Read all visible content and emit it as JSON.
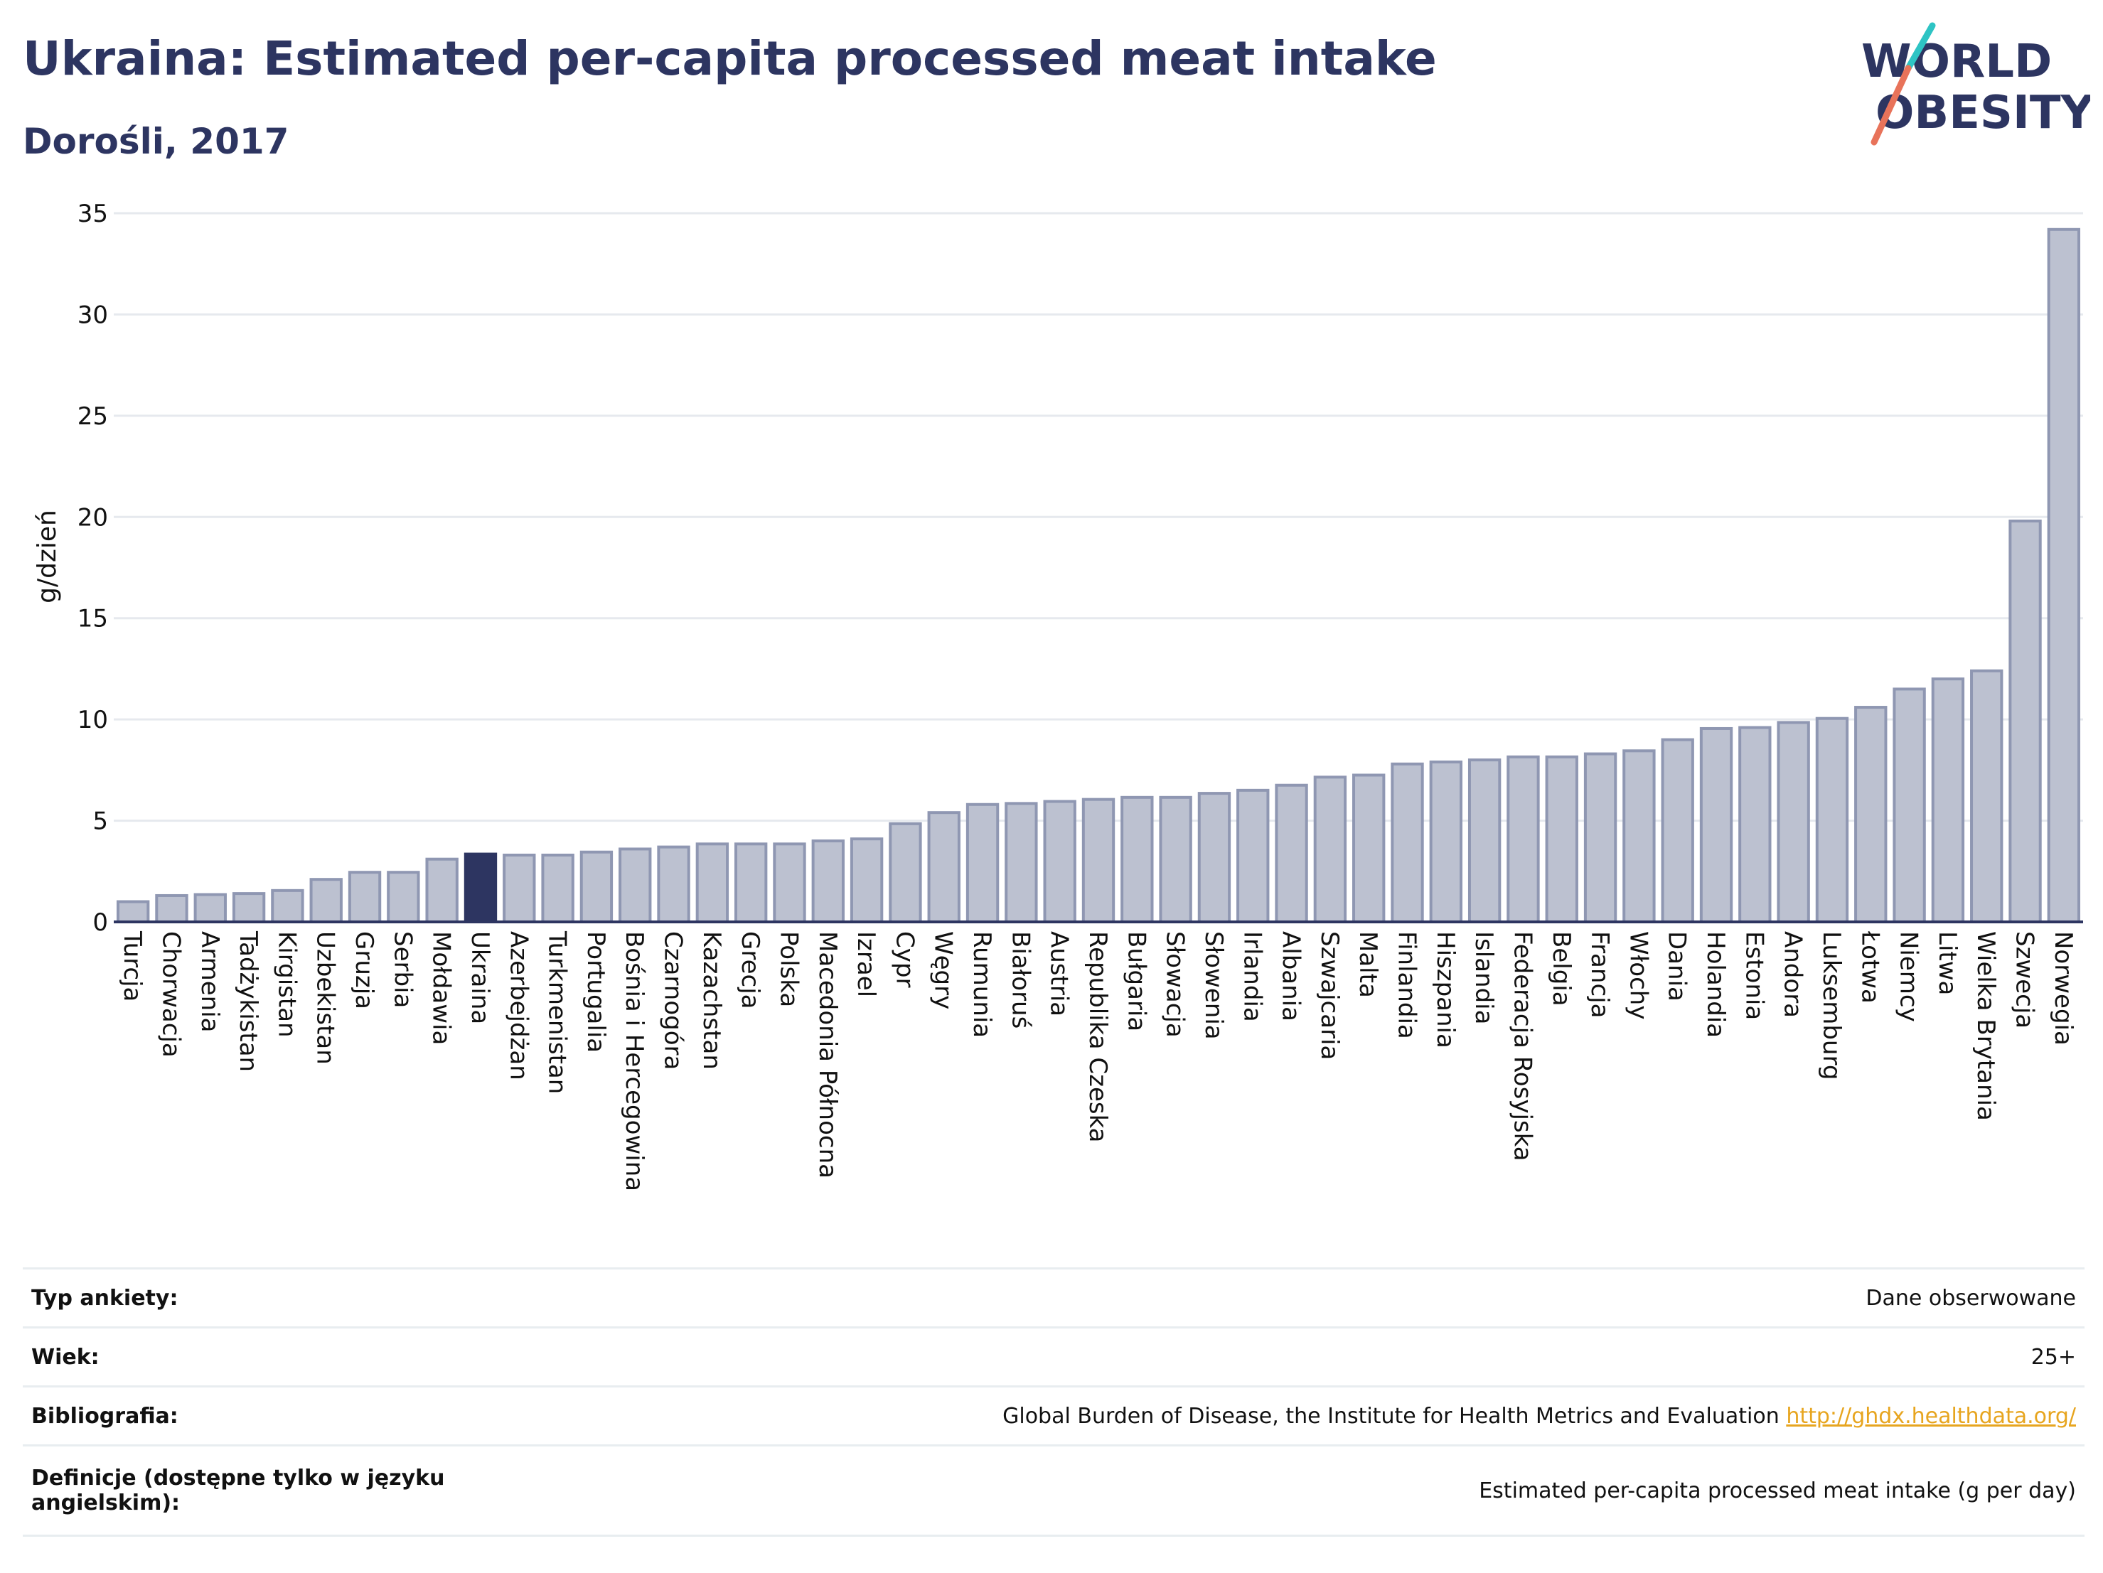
{
  "header": {
    "title": "Ukraina: Estimated per-capita processed meat intake",
    "subtitle": "Dorośli, 2017"
  },
  "logo": {
    "line1": "WORLD",
    "line2": "OBESITY",
    "accent_colors": [
      "#2ec4c4",
      "#e8735a"
    ]
  },
  "colors": {
    "highlight": "#2d3561",
    "bar": "#bcc1d0",
    "bar_edge": "#8f97b2",
    "axis": "#2d3561",
    "grid": "#e6e9ee",
    "link": "#e7a51f"
  },
  "chart_data": {
    "type": "bar",
    "title": "Ukraina: Estimated per-capita processed meat intake",
    "subtitle": "Dorośli, 2017",
    "xlabel": "",
    "ylabel": "g/dzień",
    "ylim": [
      0,
      35
    ],
    "yticks": [
      0,
      5,
      10,
      15,
      20,
      25,
      30,
      35
    ],
    "grid": true,
    "highlight": "Ukraina",
    "categories": [
      "Turcja",
      "Chorwacja",
      "Armenia",
      "Tadżykistan",
      "Kirgistan",
      "Uzbekistan",
      "Gruzja",
      "Serbia",
      "Mołdawia",
      "Ukraina",
      "Azerbejdżan",
      "Turkmenistan",
      "Portugalia",
      "Bośnia i Hercegowina",
      "Czarnogóra",
      "Kazachstan",
      "Grecja",
      "Polska",
      "Macedonia Północna",
      "Izrael",
      "Cypr",
      "Węgry",
      "Rumunia",
      "Białoruś",
      "Austria",
      "Republika Czeska",
      "Bułgaria",
      "Słowacja",
      "Słowenia",
      "Irlandia",
      "Albania",
      "Szwajcaria",
      "Malta",
      "Finlandia",
      "Hiszpania",
      "Islandia",
      "Federacja Rosyjska",
      "Belgia",
      "Francja",
      "Włochy",
      "Dania",
      "Holandia",
      "Estonia",
      "Andora",
      "Luksemburg",
      "Łotwa",
      "Niemcy",
      "Litwa",
      "Wielka Brytania",
      "Szwecja",
      "Norwegia"
    ],
    "values": [
      1.0,
      1.3,
      1.35,
      1.4,
      1.55,
      2.1,
      2.45,
      2.45,
      3.1,
      3.35,
      3.3,
      3.3,
      3.45,
      3.6,
      3.7,
      3.85,
      3.85,
      3.85,
      4.0,
      4.1,
      4.85,
      5.4,
      5.8,
      5.85,
      5.95,
      6.05,
      6.15,
      6.15,
      6.35,
      6.5,
      6.75,
      7.15,
      7.25,
      7.8,
      7.9,
      8.0,
      8.15,
      8.15,
      8.3,
      8.45,
      9.0,
      9.55,
      9.6,
      9.85,
      10.05,
      10.6,
      11.5,
      12.0,
      12.4,
      19.8,
      34.2
    ]
  },
  "info": {
    "rows": [
      {
        "label": "Typ ankiety:",
        "value": "Dane obserwowane"
      },
      {
        "label": "Wiek:",
        "value": "25+"
      },
      {
        "label": "Bibliografia:",
        "value": "Global Burden of Disease, the Institute for Health Metrics and Evaluation",
        "link": "http://ghdx.healthdata.org/"
      },
      {
        "label": "Definicje (dostępne tylko w języku angielskim):",
        "value": "Estimated per-capita processed meat intake (g per day)"
      }
    ]
  }
}
